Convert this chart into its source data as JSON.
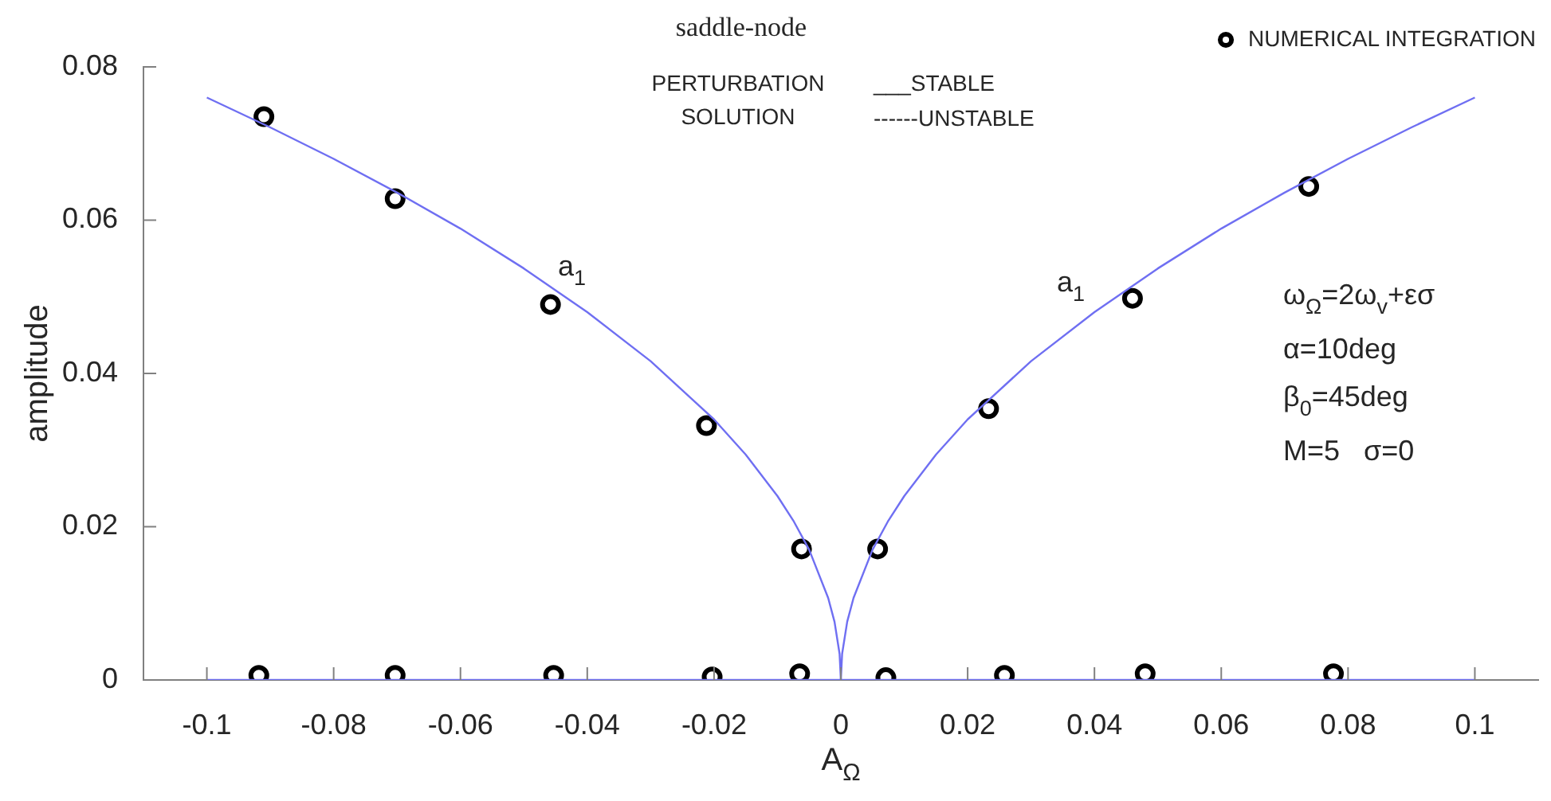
{
  "chart_data": {
    "type": "line",
    "title": "saddle-node",
    "xlabel": "A$_{Ω}$",
    "ylabel": "amplitude",
    "xlim": [
      -0.11,
      0.11
    ],
    "xticks": [
      -0.1,
      -0.08,
      -0.06,
      -0.04,
      -0.02,
      0,
      0.02,
      0.04,
      0.06,
      0.08,
      0.1
    ],
    "ylim": [
      0,
      0.08
    ],
    "yticks": [
      0,
      0.02,
      0.04,
      0.06,
      0.08
    ],
    "legend": "top right",
    "line_style": "solid",
    "series": [
      {
        "color": "#6f6ff2",
        "marker": "none",
        "x": [
          -0.1,
          -0.09,
          -0.08,
          -0.07,
          -0.06,
          -0.05,
          -0.04,
          -0.03,
          -0.02,
          -0.015,
          -0.01,
          -0.0075,
          -0.005,
          -0.002,
          -0.001,
          -0.0002,
          0
        ],
        "values": [
          0.076,
          0.0721,
          0.068,
          0.0636,
          0.0589,
          0.0537,
          0.048,
          0.0416,
          0.034,
          0.0294,
          0.024,
          0.0208,
          0.017,
          0.0107,
          0.0076,
          0.0034,
          0
        ]
      },
      {
        "color": "#6f6ff2",
        "marker": "none",
        "x": [
          0,
          0.0002,
          0.001,
          0.002,
          0.005,
          0.0075,
          0.01,
          0.015,
          0.02,
          0.03,
          0.04,
          0.05,
          0.06,
          0.07,
          0.08,
          0.09,
          0.1
        ],
        "values": [
          0,
          0.0034,
          0.0076,
          0.0107,
          0.017,
          0.0208,
          0.024,
          0.0294,
          0.034,
          0.0416,
          0.048,
          0.0537,
          0.0589,
          0.0636,
          0.068,
          0.0721,
          0.076
        ]
      },
      {
        "color": "#6f6ff2",
        "marker": "none",
        "x": [
          -0.1,
          0.1
        ],
        "values": [
          0,
          0
        ]
      },
      {
        "type": "scatter",
        "name": "NUMERICAL INTEGRATION",
        "color": "#000000",
        "marker": "circle",
        "x": [
          -0.091,
          -0.0703,
          -0.0458,
          -0.0212,
          -0.0062,
          0.0058,
          0.0233,
          0.046,
          0.0738,
          -0.0918,
          -0.0703,
          -0.0453,
          -0.0203,
          -0.0065,
          0.0071,
          0.0258,
          0.048,
          0.0777
        ],
        "values": [
          0.0735,
          0.0628,
          0.049,
          0.0332,
          0.0171,
          0.0171,
          0.0354,
          0.0498,
          0.0644,
          0.0006,
          0.0006,
          0.0006,
          0.0004,
          0.0008,
          0.0003,
          0.0006,
          0.0008,
          0.0008
        ]
      }
    ],
    "annotations": [
      "PERTURBATION SOLUTION",
      "___STABLE",
      "------UNSTABLE",
      "a$_{1}$",
      "a$_{1}$",
      "ω$_{Ω}$=2ω$_{v}$+εσ",
      "α=10deg",
      "β$_{0}$=45deg",
      "M=5   σ=0"
    ]
  }
}
